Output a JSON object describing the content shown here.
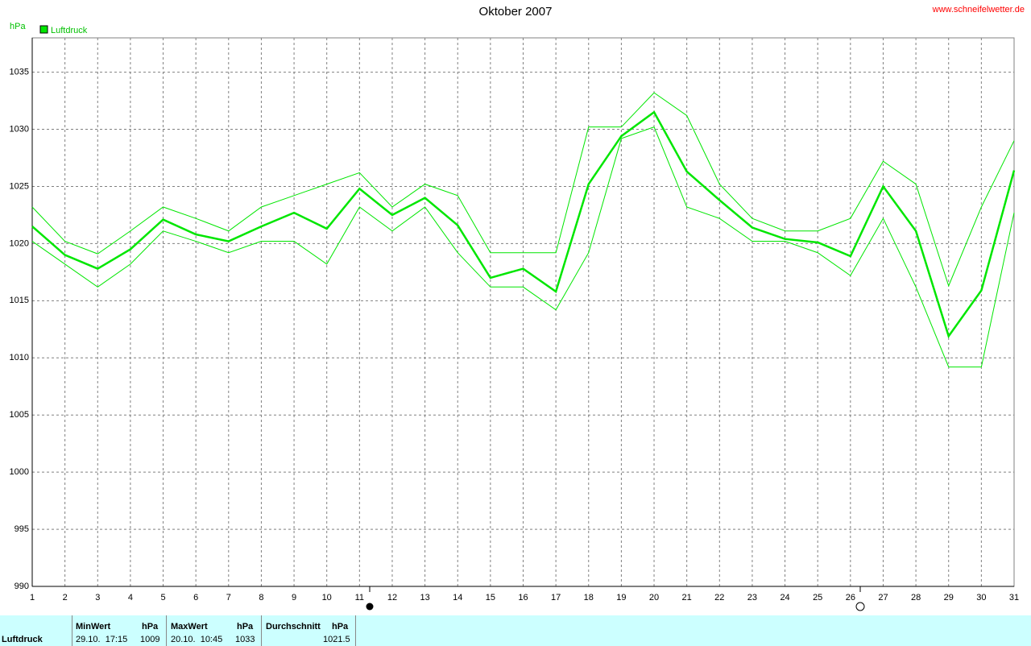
{
  "chart_data": {
    "type": "line",
    "title": "Oktober 2007",
    "source": "www.schneifelwetter.de",
    "y_label": "hPa",
    "legend": "top-left",
    "grid": true,
    "x": [
      1,
      2,
      3,
      4,
      5,
      6,
      7,
      8,
      9,
      10,
      11,
      12,
      13,
      14,
      15,
      16,
      17,
      18,
      19,
      20,
      21,
      22,
      23,
      24,
      25,
      26,
      27,
      28,
      29,
      30,
      31
    ],
    "xlim": [
      1,
      31
    ],
    "xticks": [
      1,
      2,
      3,
      4,
      5,
      6,
      7,
      8,
      9,
      10,
      11,
      12,
      13,
      14,
      15,
      16,
      17,
      18,
      19,
      20,
      21,
      22,
      23,
      24,
      25,
      26,
      27,
      28,
      29,
      30,
      31
    ],
    "ylim": [
      990,
      1038
    ],
    "yticks": [
      990,
      995,
      1000,
      1005,
      1010,
      1015,
      1020,
      1025,
      1030,
      1035
    ],
    "series": [
      {
        "name": "Luftdruck",
        "color": "#00e600",
        "values": [
          1021.5,
          1019.0,
          1017.8,
          1019.5,
          1022.1,
          1020.8,
          1020.2,
          1021.5,
          1022.7,
          1021.3,
          1024.8,
          1022.5,
          1024.0,
          1021.6,
          1017.0,
          1017.8,
          1015.8,
          1025.2,
          1029.4,
          1031.5,
          1026.3,
          1023.8,
          1021.4,
          1020.4,
          1020.1,
          1018.9,
          1025.0,
          1021.1,
          1011.9,
          1015.9,
          1026.4
        ]
      },
      {
        "color": "#00e600",
        "values": [
          1023.2,
          1020.2,
          1019.1,
          1021.1,
          1023.2,
          1022.2,
          1021.1,
          1023.2,
          1024.2,
          1025.2,
          1026.2,
          1023.2,
          1025.2,
          1024.2,
          1019.2,
          1019.2,
          1019.2,
          1030.2,
          1030.2,
          1033.2,
          1031.2,
          1025.2,
          1022.2,
          1021.1,
          1021.1,
          1022.2,
          1027.2,
          1025.2,
          1016.3,
          1023.2,
          1029.0
        ]
      },
      {
        "color": "#00e600",
        "values": [
          1020.2,
          1018.2,
          1016.2,
          1018.2,
          1021.1,
          1020.2,
          1019.2,
          1020.2,
          1020.2,
          1018.2,
          1023.2,
          1021.1,
          1023.2,
          1019.2,
          1016.2,
          1016.2,
          1014.2,
          1019.2,
          1029.2,
          1030.2,
          1023.2,
          1022.2,
          1020.2,
          1020.2,
          1019.2,
          1017.2,
          1022.2,
          1016.2,
          1009.2,
          1009.2,
          1022.7
        ]
      }
    ]
  },
  "stats": {
    "row_label": "Luftdruck",
    "columns": [
      {
        "header": "MinWert",
        "unit": "hPa",
        "time": "29.10.  17:15",
        "value": 1009
      },
      {
        "header": "MaxWert",
        "unit": "hPa",
        "time": "20.10.  10:45",
        "value": 1033
      },
      {
        "header": "Durchschnitt",
        "unit": "hPa",
        "value": 1021.5
      }
    ]
  }
}
